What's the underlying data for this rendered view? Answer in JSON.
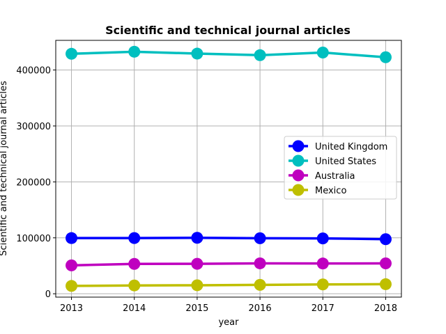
{
  "chart_data": {
    "type": "line",
    "title": "Scientific and technical journal articles",
    "xlabel": "year",
    "ylabel": "Scientific and technical journal articles",
    "x": [
      2013,
      2014,
      2015,
      2016,
      2017,
      2018
    ],
    "xticks": [
      "2013",
      "2014",
      "2015",
      "2016",
      "2017",
      "2018"
    ],
    "yticks": [
      0,
      100000,
      200000,
      300000,
      400000
    ],
    "ytick_labels": [
      "0",
      "100000",
      "200000",
      "300000",
      "400000"
    ],
    "xlim": [
      2012.75,
      2018.25
    ],
    "ylim": [
      -6000,
      453000
    ],
    "grid": true,
    "legend_position": "center-right",
    "series": [
      {
        "name": "United Kingdom",
        "color": "#0000ff",
        "values": [
          99500,
          99600,
          100000,
          99300,
          99000,
          97600
        ]
      },
      {
        "name": "United States",
        "color": "#00bfbf",
        "values": [
          429000,
          432700,
          429300,
          426500,
          431200,
          422800
        ]
      },
      {
        "name": "Australia",
        "color": "#bf00bf",
        "values": [
          50800,
          53400,
          53600,
          54400,
          54100,
          54300
        ]
      },
      {
        "name": "Mexico",
        "color": "#bfbf00",
        "values": [
          14000,
          14900,
          15200,
          15900,
          16700,
          17100
        ]
      }
    ]
  }
}
